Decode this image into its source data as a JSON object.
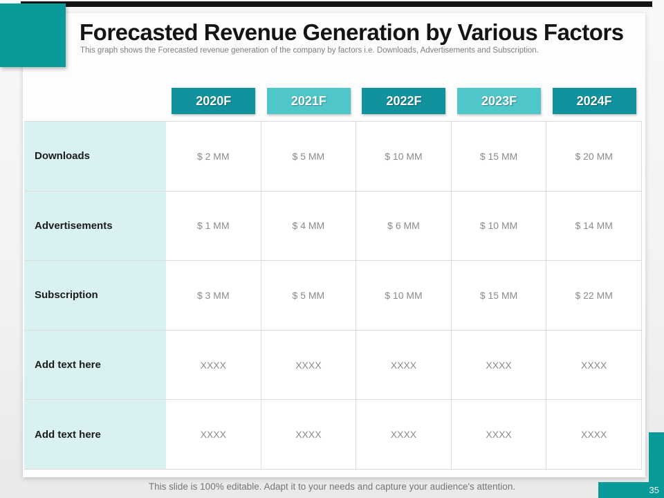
{
  "slide": {
    "title": "Forecasted Revenue Generation by Various Factors",
    "subtitle": "This graph shows the Forecasted revenue generation of the company by factors i.e. Downloads, Advertisements and Subscription.",
    "footer": "This slide is 100% editable. Adapt it to your needs and capture your audience's attention.",
    "page_number": "35"
  },
  "colors": {
    "teal_accent": "#0a9a9a",
    "chip_dark": "#12929d",
    "chip_light": "#4fc6ca",
    "label_column_bg": "#d9f1f0",
    "grid_border": "#dcdcdc",
    "value_text": "#8a8a8a",
    "top_bar": "#141414"
  },
  "chart_data": {
    "type": "table",
    "title": "Forecasted Revenue Generation by Various Factors",
    "columns": [
      "2020F",
      "2021F",
      "2022F",
      "2023F",
      "2024F"
    ],
    "column_chip_colors": [
      "#12929d",
      "#4fc6ca",
      "#12929d",
      "#4fc6ca",
      "#12929d"
    ],
    "rows": [
      {
        "label": "Downloads",
        "values": [
          "$ 2 MM",
          "$ 5 MM",
          "$ 10 MM",
          "$ 15 MM",
          "$ 20 MM"
        ]
      },
      {
        "label": "Advertisements",
        "values": [
          "$ 1 MM",
          "$ 4 MM",
          "$ 6 MM",
          "$ 10 MM",
          "$ 14 MM"
        ]
      },
      {
        "label": "Subscription",
        "values": [
          "$ 3 MM",
          "$ 5 MM",
          "$ 10 MM",
          "$ 15 MM",
          "$ 22 MM"
        ]
      },
      {
        "label": "Add text here",
        "values": [
          "XXXX",
          "XXXX",
          "XXXX",
          "XXXX",
          "XXXX"
        ]
      },
      {
        "label": "Add text here",
        "values": [
          "XXXX",
          "XXXX",
          "XXXX",
          "XXXX",
          "XXXX"
        ]
      }
    ],
    "legend_position": "none",
    "grid": true
  }
}
